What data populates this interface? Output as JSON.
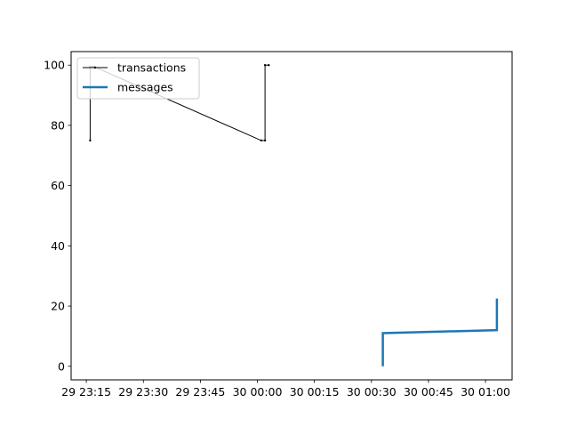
{
  "chart_data": {
    "type": "line",
    "title": "",
    "xlabel": "",
    "ylabel": "",
    "x_axis_type": "datetime",
    "xlim": [
      "29 23:11",
      "30 01:07"
    ],
    "ylim": [
      -4.5,
      104.5
    ],
    "x_ticks": [
      {
        "value": "29 23:15",
        "label": "29 23:15"
      },
      {
        "value": "29 23:30",
        "label": "29 23:30"
      },
      {
        "value": "29 23:45",
        "label": "29 23:45"
      },
      {
        "value": "30 00:00",
        "label": "30 00:00"
      },
      {
        "value": "30 00:15",
        "label": "30 00:15"
      },
      {
        "value": "30 00:30",
        "label": "30 00:30"
      },
      {
        "value": "30 00:45",
        "label": "30 00:45"
      },
      {
        "value": "30 01:00",
        "label": "30 01:00"
      }
    ],
    "y_ticks": [
      {
        "value": 0,
        "label": "0"
      },
      {
        "value": 20,
        "label": "20"
      },
      {
        "value": 40,
        "label": "40"
      },
      {
        "value": 60,
        "label": "60"
      },
      {
        "value": 80,
        "label": "80"
      },
      {
        "value": 100,
        "label": "100"
      }
    ],
    "grid": false,
    "legend_position": "top-left",
    "series": [
      {
        "name": "transactions",
        "color": "#000000",
        "line_width": 1,
        "marker": "dot",
        "points": [
          {
            "x": "29 23:16",
            "y": 75
          },
          {
            "x": "29 23:16",
            "y": 99.5
          },
          {
            "x": "29 23:17",
            "y": 99.5
          },
          {
            "x": "30 00:01",
            "y": 75
          },
          {
            "x": "30 00:02",
            "y": 75
          },
          {
            "x": "30 00:02",
            "y": 100
          },
          {
            "x": "30 00:03",
            "y": 100
          }
        ]
      },
      {
        "name": "messages",
        "color": "#1f77b4",
        "line_width": 2.5,
        "marker": "none",
        "points": [
          {
            "x": "30 00:33",
            "y": 0
          },
          {
            "x": "30 00:33",
            "y": 11
          },
          {
            "x": "30 01:03",
            "y": 12
          },
          {
            "x": "30 01:03",
            "y": 22.5
          }
        ]
      }
    ]
  }
}
